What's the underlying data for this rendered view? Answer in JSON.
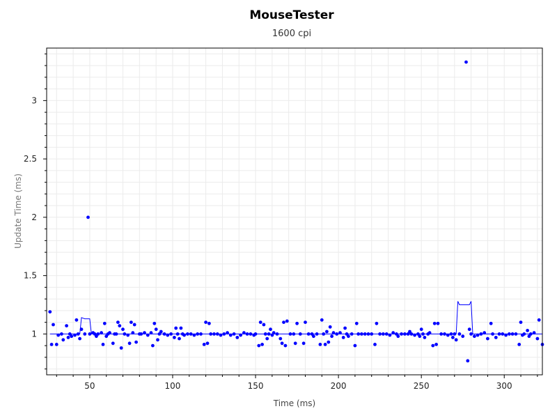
{
  "chart_data": {
    "type": "scatter",
    "title": "MouseTester",
    "subtitle": "1600 cpi",
    "xlabel": "Time (ms)",
    "ylabel": "Update Time (ms)",
    "xlim": [
      24,
      323
    ],
    "ylim": [
      0.65,
      3.45
    ],
    "xticks": [
      50,
      100,
      150,
      200,
      250,
      300
    ],
    "yticks": [
      1,
      1.5,
      2,
      2.5,
      3
    ],
    "xtick_labels": [
      "50",
      "100",
      "150",
      "200",
      "250",
      "300"
    ],
    "ytick_labels": [
      "1",
      "1.5",
      "2",
      "2.5",
      "3"
    ],
    "grid": true,
    "colors": {
      "points": "#0000ff",
      "line": "#0000ff",
      "grid": "#ebebeb",
      "axis": "#000000"
    },
    "series": [
      {
        "type": "scatter",
        "points": [
          [
            26,
            1.19
          ],
          [
            27,
            0.91
          ],
          [
            28,
            1.08
          ],
          [
            30,
            0.91
          ],
          [
            31,
            0.99
          ],
          [
            33,
            1.0
          ],
          [
            34,
            0.95
          ],
          [
            36,
            1.07
          ],
          [
            37,
            0.97
          ],
          [
            38,
            1.0
          ],
          [
            39,
            0.98
          ],
          [
            41,
            0.99
          ],
          [
            42,
            1.12
          ],
          [
            43,
            1.0
          ],
          [
            44,
            0.96
          ],
          [
            45,
            1.04
          ],
          [
            47,
            1.0
          ],
          [
            49,
            2.0
          ],
          [
            50,
            1.0
          ],
          [
            52,
            1.01
          ],
          [
            53,
            1.0
          ],
          [
            54,
            0.98
          ],
          [
            55,
            1.0
          ],
          [
            57,
            1.01
          ],
          [
            58,
            0.91
          ],
          [
            59,
            1.09
          ],
          [
            60,
            0.98
          ],
          [
            61,
            1.0
          ],
          [
            62,
            1.01
          ],
          [
            64,
            0.92
          ],
          [
            65,
            1.0
          ],
          [
            66,
            1.0
          ],
          [
            67,
            1.1
          ],
          [
            68,
            1.07
          ],
          [
            69,
            0.88
          ],
          [
            70,
            1.04
          ],
          [
            71,
            1.0
          ],
          [
            73,
            0.99
          ],
          [
            74,
            0.92
          ],
          [
            75,
            1.1
          ],
          [
            76,
            1.01
          ],
          [
            77,
            1.08
          ],
          [
            78,
            0.93
          ],
          [
            80,
            1.0
          ],
          [
            81,
            1.0
          ],
          [
            83,
            1.01
          ],
          [
            85,
            0.99
          ],
          [
            87,
            1.01
          ],
          [
            88,
            0.9
          ],
          [
            89,
            1.09
          ],
          [
            90,
            1.04
          ],
          [
            91,
            0.95
          ],
          [
            92,
            1.0
          ],
          [
            93,
            1.02
          ],
          [
            95,
            1.0
          ],
          [
            97,
            0.99
          ],
          [
            99,
            1.0
          ],
          [
            101,
            0.97
          ],
          [
            102,
            1.05
          ],
          [
            103,
            1.0
          ],
          [
            104,
            0.96
          ],
          [
            105,
            1.05
          ],
          [
            106,
            1.0
          ],
          [
            107,
            0.99
          ],
          [
            109,
            1.0
          ],
          [
            111,
            1.0
          ],
          [
            113,
            0.99
          ],
          [
            115,
            1.0
          ],
          [
            117,
            1.0
          ],
          [
            119,
            0.91
          ],
          [
            120,
            1.1
          ],
          [
            121,
            0.92
          ],
          [
            122,
            1.09
          ],
          [
            123,
            1.0
          ],
          [
            125,
            1.0
          ],
          [
            127,
            1.0
          ],
          [
            129,
            0.99
          ],
          [
            131,
            1.0
          ],
          [
            133,
            1.01
          ],
          [
            135,
            0.99
          ],
          [
            137,
            1.0
          ],
          [
            139,
            0.97
          ],
          [
            141,
            0.99
          ],
          [
            143,
            1.01
          ],
          [
            145,
            1.0
          ],
          [
            147,
            1.0
          ],
          [
            149,
            0.99
          ],
          [
            150,
            1.0
          ],
          [
            152,
            0.9
          ],
          [
            153,
            1.1
          ],
          [
            154,
            0.91
          ],
          [
            155,
            1.08
          ],
          [
            156,
            1.0
          ],
          [
            157,
            0.96
          ],
          [
            158,
            1.0
          ],
          [
            159,
            1.04
          ],
          [
            160,
            0.99
          ],
          [
            161,
            1.01
          ],
          [
            163,
            1.0
          ],
          [
            165,
            0.96
          ],
          [
            166,
            0.92
          ],
          [
            167,
            1.1
          ],
          [
            168,
            0.9
          ],
          [
            169,
            1.11
          ],
          [
            171,
            1.0
          ],
          [
            173,
            1.0
          ],
          [
            174,
            0.92
          ],
          [
            175,
            1.09
          ],
          [
            177,
            1.0
          ],
          [
            179,
            0.92
          ],
          [
            180,
            1.1
          ],
          [
            182,
            1.0
          ],
          [
            184,
            1.0
          ],
          [
            185,
            0.98
          ],
          [
            187,
            1.0
          ],
          [
            189,
            0.91
          ],
          [
            190,
            1.12
          ],
          [
            191,
            1.0
          ],
          [
            192,
            0.91
          ],
          [
            193,
            1.02
          ],
          [
            194,
            0.93
          ],
          [
            195,
            1.06
          ],
          [
            196,
            0.98
          ],
          [
            197,
            1.01
          ],
          [
            199,
            1.0
          ],
          [
            201,
            1.01
          ],
          [
            203,
            0.97
          ],
          [
            204,
            1.05
          ],
          [
            205,
            1.0
          ],
          [
            206,
            0.98
          ],
          [
            208,
            1.0
          ],
          [
            210,
            0.9
          ],
          [
            211,
            1.09
          ],
          [
            212,
            1.0
          ],
          [
            214,
            1.0
          ],
          [
            216,
            1.0
          ],
          [
            218,
            1.0
          ],
          [
            220,
            1.0
          ],
          [
            222,
            0.91
          ],
          [
            223,
            1.09
          ],
          [
            225,
            1.0
          ],
          [
            227,
            1.0
          ],
          [
            229,
            1.0
          ],
          [
            231,
            0.99
          ],
          [
            233,
            1.01
          ],
          [
            235,
            1.0
          ],
          [
            236,
            0.98
          ],
          [
            238,
            1.0
          ],
          [
            240,
            1.0
          ],
          [
            242,
            1.0
          ],
          [
            243,
            1.02
          ],
          [
            244,
            1.0
          ],
          [
            246,
            0.99
          ],
          [
            248,
            1.0
          ],
          [
            249,
            0.98
          ],
          [
            250,
            1.04
          ],
          [
            251,
            1.0
          ],
          [
            252,
            0.97
          ],
          [
            254,
            1.0
          ],
          [
            255,
            1.01
          ],
          [
            257,
            0.9
          ],
          [
            258,
            1.09
          ],
          [
            259,
            0.91
          ],
          [
            260,
            1.09
          ],
          [
            262,
            1.0
          ],
          [
            264,
            1.0
          ],
          [
            266,
            0.99
          ],
          [
            268,
            1.0
          ],
          [
            269,
            0.97
          ],
          [
            270,
            1.0
          ],
          [
            271,
            0.95
          ],
          [
            273,
            1.0
          ],
          [
            275,
            0.98
          ],
          [
            277,
            3.33
          ],
          [
            278,
            0.77
          ],
          [
            279,
            1.04
          ],
          [
            280,
            1.0
          ],
          [
            282,
            0.98
          ],
          [
            284,
            0.99
          ],
          [
            286,
            1.0
          ],
          [
            288,
            1.01
          ],
          [
            290,
            0.96
          ],
          [
            292,
            1.09
          ],
          [
            293,
            1.0
          ],
          [
            295,
            0.97
          ],
          [
            297,
            1.0
          ],
          [
            299,
            1.0
          ],
          [
            301,
            0.99
          ],
          [
            303,
            1.0
          ],
          [
            305,
            1.0
          ],
          [
            307,
            1.0
          ],
          [
            309,
            0.91
          ],
          [
            310,
            1.1
          ],
          [
            311,
            0.99
          ],
          [
            312,
            1.0
          ],
          [
            314,
            1.03
          ],
          [
            315,
            0.98
          ],
          [
            316,
            1.0
          ],
          [
            318,
            1.01
          ],
          [
            320,
            0.96
          ],
          [
            321,
            1.12
          ],
          [
            323,
            0.91
          ]
        ]
      },
      {
        "type": "line",
        "points": [
          [
            26,
            1.0
          ],
          [
            30,
            1.0
          ],
          [
            36,
            1.0
          ],
          [
            42,
            1.0
          ],
          [
            44,
            1.0
          ],
          [
            45,
            1.14
          ],
          [
            47,
            1.13
          ],
          [
            49,
            1.13
          ],
          [
            50,
            1.13
          ],
          [
            51,
            1.0
          ],
          [
            55,
            1.0
          ],
          [
            60,
            1.0
          ],
          [
            70,
            1.0
          ],
          [
            80,
            1.0
          ],
          [
            100,
            1.0
          ],
          [
            120,
            1.0
          ],
          [
            150,
            1.0
          ],
          [
            180,
            1.0
          ],
          [
            200,
            1.0
          ],
          [
            220,
            1.0
          ],
          [
            250,
            1.0
          ],
          [
            265,
            1.0
          ],
          [
            270,
            1.0
          ],
          [
            271,
            1.0
          ],
          [
            272,
            1.28
          ],
          [
            273,
            1.25
          ],
          [
            276,
            1.25
          ],
          [
            279,
            1.25
          ],
          [
            280,
            1.28
          ],
          [
            281,
            1.0
          ],
          [
            285,
            1.0
          ],
          [
            300,
            1.0
          ],
          [
            323,
            1.0
          ]
        ]
      }
    ]
  }
}
